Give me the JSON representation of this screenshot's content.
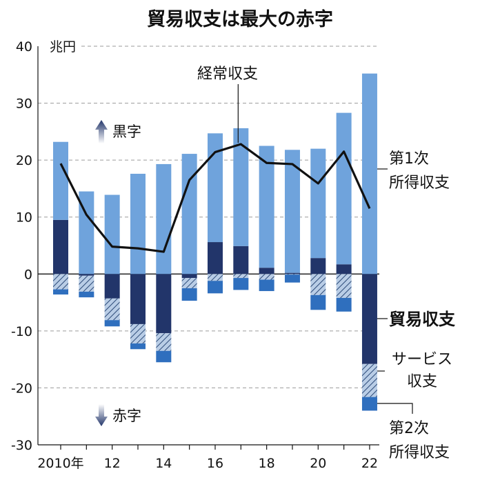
{
  "chart_data": {
    "type": "bar",
    "title": "貿易収支は最大の赤字",
    "unit_label": "兆円",
    "ylim": [
      -30,
      40
    ],
    "yticks": [
      40,
      30,
      20,
      10,
      0,
      -10,
      -20,
      -30
    ],
    "years": [
      2010,
      2011,
      2012,
      2013,
      2014,
      2015,
      2016,
      2017,
      2018,
      2019,
      2020,
      2021,
      2022
    ],
    "x_tick_labels": [
      "2010年",
      "12",
      "14",
      "16",
      "18",
      "20",
      "22"
    ],
    "x_tick_years": [
      2010,
      2012,
      2014,
      2016,
      2018,
      2020,
      2022
    ],
    "series": [
      {
        "name": "第1次所得収支",
        "color": "#6fa3dc",
        "values": [
          13.7,
          14.5,
          13.9,
          17.6,
          19.3,
          21.1,
          19.1,
          20.7,
          21.4,
          21.6,
          19.2,
          26.6,
          35.2
        ]
      },
      {
        "name": "貿易収支",
        "color": "#22356a",
        "values": [
          9.5,
          -0.3,
          -4.3,
          -8.8,
          -10.4,
          -0.7,
          5.6,
          4.9,
          1.1,
          0.2,
          2.8,
          1.7,
          -15.8
        ]
      },
      {
        "name": "サービス収支",
        "color": "#8fb1d8",
        "pattern": "hatch",
        "values": [
          -2.7,
          -2.8,
          -3.8,
          -3.4,
          -3.1,
          -1.8,
          -1.2,
          -0.7,
          -1.0,
          -0.1,
          -3.7,
          -4.2,
          -5.8
        ]
      },
      {
        "name": "第2次所得収支",
        "color": "#2f6fbe",
        "values": [
          -0.9,
          -1.0,
          -1.1,
          -1.0,
          -2.0,
          -2.2,
          -2.2,
          -2.1,
          -2.0,
          -1.4,
          -2.6,
          -2.4,
          -2.4
        ]
      }
    ],
    "line": {
      "name": "経常収支",
      "color": "#111111",
      "values": [
        19.4,
        10.4,
        4.8,
        4.5,
        3.9,
        16.5,
        21.4,
        22.8,
        19.5,
        19.3,
        15.9,
        21.5,
        11.5
      ]
    },
    "annotations": {
      "surplus": "黒字",
      "deficit": "赤字"
    },
    "grid": true
  }
}
